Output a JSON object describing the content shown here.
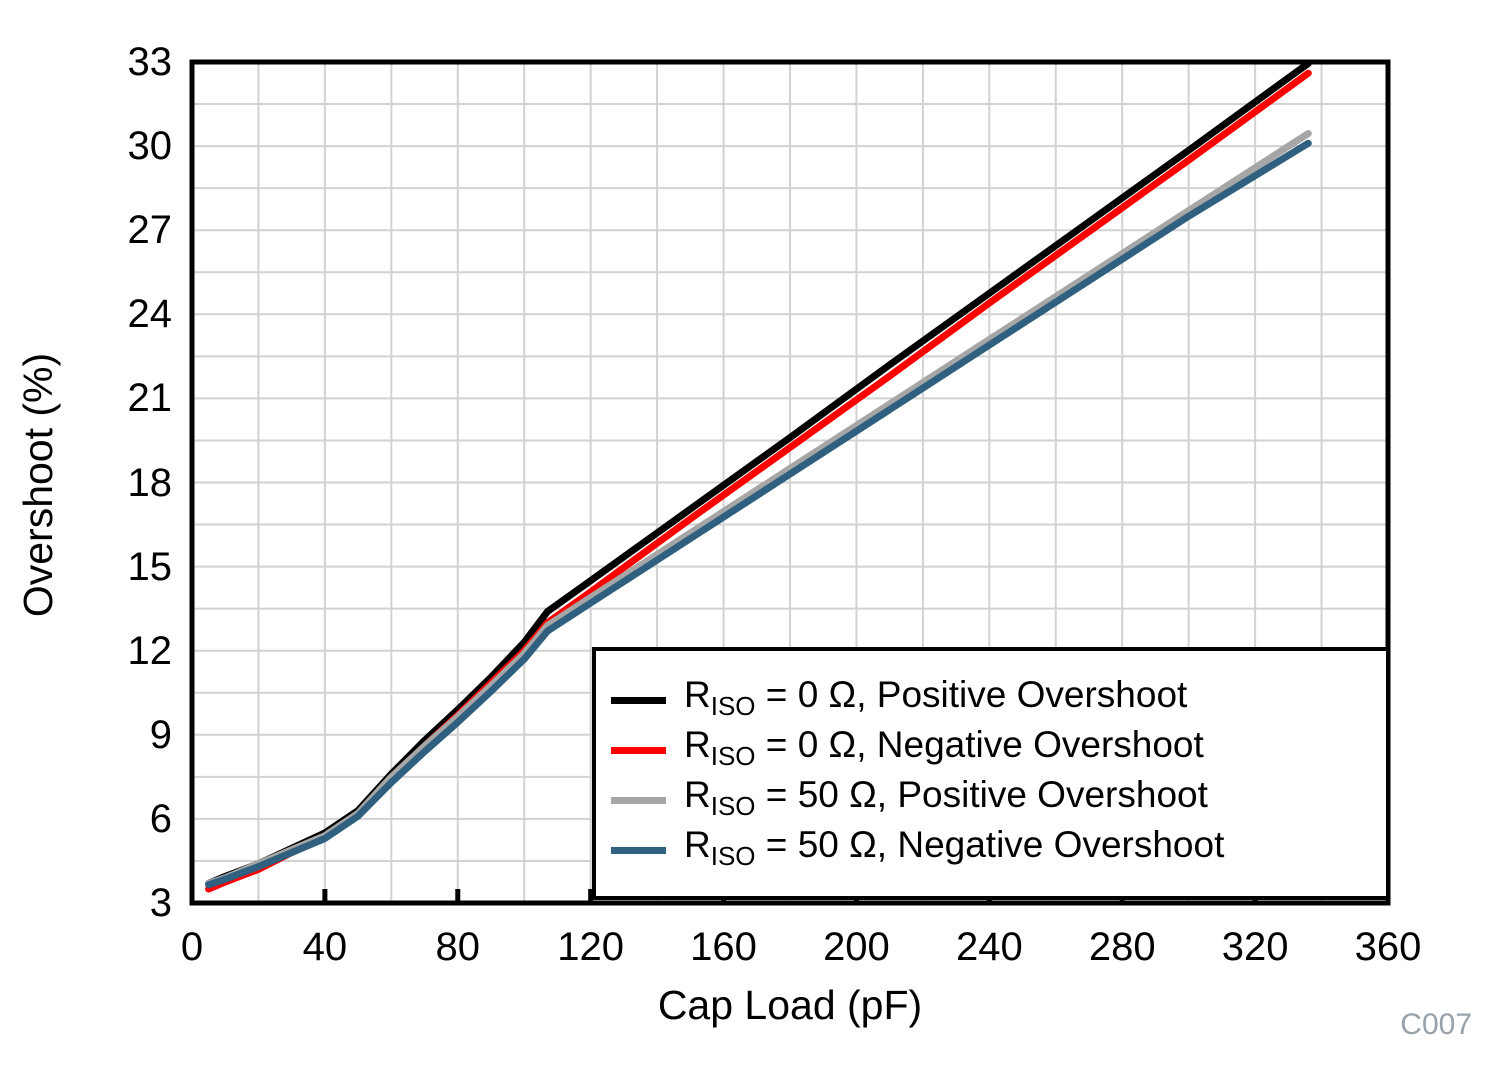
{
  "figure": {
    "code_label": "C007",
    "code_label_color": "#99a1aa",
    "background": "#ffffff"
  },
  "chart_data": {
    "type": "line",
    "title": "",
    "xlabel": "Cap Load (pF)",
    "ylabel": "Overshoot (%)",
    "xlim": [
      0,
      360
    ],
    "ylim": [
      3,
      33
    ],
    "x_ticks": [
      0,
      40,
      80,
      120,
      160,
      200,
      240,
      280,
      320,
      360
    ],
    "y_ticks": [
      33,
      30,
      27,
      24,
      21,
      18,
      15,
      12,
      9,
      6,
      3
    ],
    "x_minor_step": 20,
    "y_minor_step": 1.5,
    "grid": "on",
    "grid_color": "#d2d2d2",
    "axis_color": "#000000",
    "legend_position": "bottom-right",
    "series": [
      {
        "name": "RISO = 0 Ω, Positive Overshoot",
        "label_prefix": "R",
        "label_sub": "ISO",
        "label_rest": " = 0 Ω, Positive Overshoot",
        "color": "#000000",
        "x": [
          5,
          10,
          20,
          30,
          40,
          50,
          60,
          70,
          80,
          90,
          100,
          107,
          120,
          150,
          180,
          210,
          240,
          270,
          300,
          336
        ],
        "y": [
          3.7,
          3.95,
          4.4,
          4.95,
          5.5,
          6.3,
          7.6,
          8.8,
          9.9,
          11.05,
          12.3,
          13.4,
          14.5,
          17.05,
          19.6,
          22.2,
          24.75,
          27.3,
          29.85,
          32.95
        ]
      },
      {
        "name": "RISO = 0 Ω, Negative Overshoot",
        "label_prefix": "R",
        "label_sub": "ISO",
        "label_rest": " = 0 Ω, Negative Overshoot",
        "color": "#ff0000",
        "x": [
          5,
          10,
          20,
          30,
          40,
          50,
          60,
          70,
          80,
          90,
          100,
          107,
          120,
          150,
          180,
          210,
          240,
          270,
          300,
          336
        ],
        "y": [
          3.5,
          3.75,
          4.2,
          4.8,
          5.35,
          6.15,
          7.4,
          8.6,
          9.7,
          10.85,
          12.0,
          13.0,
          14.1,
          16.7,
          19.25,
          21.8,
          24.4,
          26.95,
          29.5,
          32.6
        ]
      },
      {
        "name": "RISO = 50 Ω, Positive Overshoot",
        "label_prefix": "R",
        "label_sub": "ISO",
        "label_rest": " = 50 Ω, Positive Overshoot",
        "color": "#a6a6a6",
        "x": [
          5,
          10,
          20,
          30,
          40,
          50,
          60,
          70,
          80,
          90,
          100,
          107,
          120,
          150,
          180,
          210,
          240,
          270,
          300,
          336
        ],
        "y": [
          3.7,
          3.9,
          4.4,
          4.9,
          5.4,
          6.2,
          7.5,
          8.6,
          9.65,
          10.75,
          11.9,
          12.9,
          13.9,
          16.2,
          18.5,
          20.8,
          23.1,
          25.4,
          27.7,
          30.45
        ]
      },
      {
        "name": "RISO = 50 Ω, Negative Overshoot",
        "label_prefix": "R",
        "label_sub": "ISO",
        "label_rest": " = 50 Ω, Negative Overshoot",
        "color": "#2f607f",
        "x": [
          5,
          10,
          20,
          30,
          40,
          50,
          60,
          70,
          80,
          90,
          100,
          107,
          120,
          150,
          180,
          210,
          240,
          270,
          300,
          336
        ],
        "y": [
          3.65,
          3.85,
          4.3,
          4.8,
          5.3,
          6.1,
          7.3,
          8.4,
          9.45,
          10.55,
          11.7,
          12.7,
          13.7,
          16.0,
          18.3,
          20.6,
          22.9,
          25.2,
          27.5,
          30.1
        ]
      }
    ]
  }
}
